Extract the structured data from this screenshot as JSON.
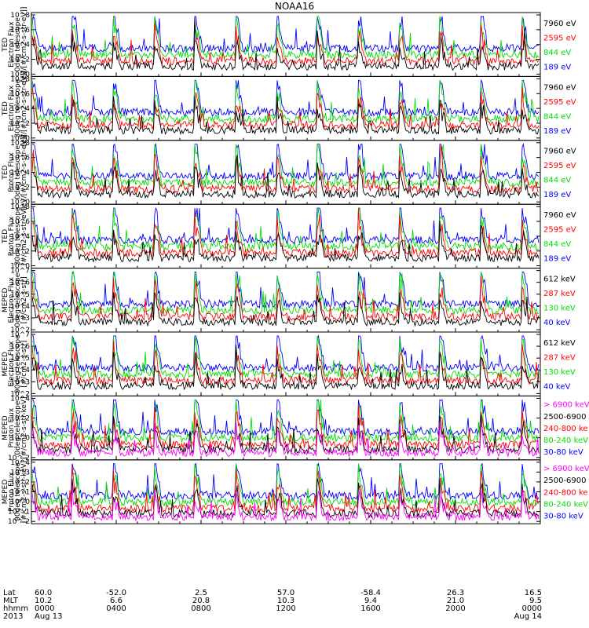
{
  "chart_data": {
    "type": "line",
    "title": "NOAA16",
    "panels": [
      {
        "instrument": "TED",
        "ylabel_lines": [
          "Electron Flux",
          "0deg telescope",
          "[eV/[#/cm2-s-str-eV]]"
        ],
        "yticks": [
          "10^8",
          "10^6",
          "10^4",
          "10^2",
          "10^0"
        ],
        "ylim_exp": [
          0,
          8
        ],
        "legend": [
          {
            "label": "7960 eV",
            "color": "#000000"
          },
          {
            "label": "2595 eV",
            "color": "#ff0000"
          },
          {
            "label": "844 eV",
            "color": "#00dd00"
          },
          {
            "label": "189 eV",
            "color": "#0000ff"
          }
        ]
      },
      {
        "instrument": "TED",
        "ylabel_lines": [
          "Electron Flux",
          "30deg telescope",
          "[eV/[#/cm2-s-str-eV]]"
        ],
        "yticks": [
          "10^8",
          "10^6",
          "10^4",
          "10^2",
          "10^0"
        ],
        "ylim_exp": [
          0,
          8
        ],
        "legend": [
          {
            "label": "7960 eV",
            "color": "#000000"
          },
          {
            "label": "2595 eV",
            "color": "#ff0000"
          },
          {
            "label": "844 eV",
            "color": "#00dd00"
          },
          {
            "label": "189 eV",
            "color": "#0000ff"
          }
        ]
      },
      {
        "instrument": "TED",
        "ylabel_lines": [
          "Proton Flux",
          "0deg telescope",
          "[eV/[#/cm2-s-str-eV]]"
        ],
        "yticks": [
          "10^8",
          "10^6",
          "10^4",
          "10^2",
          "10^0"
        ],
        "ylim_exp": [
          0,
          8
        ],
        "legend": [
          {
            "label": "7960 eV",
            "color": "#000000"
          },
          {
            "label": "2595 eV",
            "color": "#ff0000"
          },
          {
            "label": "844 eV",
            "color": "#00dd00"
          },
          {
            "label": "189 eV",
            "color": "#0000ff"
          }
        ]
      },
      {
        "instrument": "TED",
        "ylabel_lines": [
          "Proton Flux",
          "30deg telescope",
          "[#/cm2-s-str-eV]"
        ],
        "yticks": [
          "10^8",
          "10^6",
          "10^4",
          "10^2",
          "10^0"
        ],
        "ylim_exp": [
          0,
          8
        ],
        "legend": [
          {
            "label": "7960 eV",
            "color": "#000000"
          },
          {
            "label": "2595 eV",
            "color": "#ff0000"
          },
          {
            "label": "844 eV",
            "color": "#00dd00"
          },
          {
            "label": "189 eV",
            "color": "#0000ff"
          }
        ]
      },
      {
        "instrument": "MEPED",
        "ylabel_lines": [
          "Electron Flux",
          "0deg telescope",
          "[#/cm2-s-str]"
        ],
        "yticks": [
          "10^7",
          "10^6",
          "10^5",
          "10^4",
          "10^3",
          "10^2"
        ],
        "ylim_exp": [
          2,
          7
        ],
        "legend": [
          {
            "label": "612 keV",
            "color": "#000000"
          },
          {
            "label": "287 keV",
            "color": "#ff0000"
          },
          {
            "label": "130 keV",
            "color": "#00dd00"
          },
          {
            "label": "40 keV",
            "color": "#0000ff"
          }
        ]
      },
      {
        "instrument": "MEPED",
        "ylabel_lines": [
          "Electron Flux",
          "90deg telescope",
          "[#/cm2-s-str]"
        ],
        "yticks": [
          "10^7",
          "10^6",
          "10^5",
          "10^4",
          "10^3",
          "10^2"
        ],
        "ylim_exp": [
          2,
          7
        ],
        "legend": [
          {
            "label": "612 keV",
            "color": "#000000"
          },
          {
            "label": "287 keV",
            "color": "#ff0000"
          },
          {
            "label": "130 keV",
            "color": "#00dd00"
          },
          {
            "label": "40 keV",
            "color": "#0000ff"
          }
        ]
      },
      {
        "instrument": "MEPED",
        "ylabel_lines": [
          "Proton Flux",
          "0deg telescope",
          "[#/cm2-s-str-keV]"
        ],
        "yticks": [
          "10^4",
          "10^2",
          "10^0",
          "10^-2"
        ],
        "ylim_exp": [
          -2,
          5
        ],
        "legend": [
          {
            "label": "> 6900 keV",
            "color": "#ff00ff"
          },
          {
            "label": "2500-6900",
            "color": "#000000"
          },
          {
            "label": "240-800 ke",
            "color": "#ff0000"
          },
          {
            "label": "80-240 keV",
            "color": "#00dd00"
          },
          {
            "label": "30-80 keV",
            "color": "#0000ff"
          }
        ]
      },
      {
        "instrument": "MEPED",
        "ylabel_lines": [
          "Proton Flux",
          "90deg telescope",
          "[#/cm2-s-str-keV]"
        ],
        "yticks": [
          "10^4",
          "10^3",
          "10^2",
          "10^1",
          "10^0",
          "10^-1",
          "10^-2"
        ],
        "ylim_exp": [
          -2,
          4
        ],
        "legend": [
          {
            "label": "> 6900 keV",
            "color": "#ff00ff"
          },
          {
            "label": "2500-6900",
            "color": "#000000"
          },
          {
            "label": "240-800 ke",
            "color": "#ff0000"
          },
          {
            "label": "80-240 keV",
            "color": "#00dd00"
          },
          {
            "label": "30-80 keV",
            "color": "#0000ff"
          }
        ]
      }
    ],
    "xaxis": {
      "row_labels": [
        "Lat",
        "MLT",
        "hhmm",
        "2013"
      ],
      "ticks": [
        {
          "lat": "60.0",
          "mlt": "10.2",
          "hhmm": "0000",
          "date": "Aug 13"
        },
        {
          "lat": "-52.0",
          "mlt": "6.6",
          "hhmm": "0400",
          "date": ""
        },
        {
          "lat": "2.5",
          "mlt": "20.8",
          "hhmm": "0800",
          "date": ""
        },
        {
          "lat": "57.0",
          "mlt": "10.3",
          "hhmm": "1200",
          "date": ""
        },
        {
          "lat": "-58.4",
          "mlt": "9.4",
          "hhmm": "1600",
          "date": ""
        },
        {
          "lat": "26.3",
          "mlt": "21.0",
          "hhmm": "2000",
          "date": ""
        },
        {
          "lat": "16.5",
          "mlt": "9.5",
          "hhmm": "0000",
          "date": "Aug 14"
        }
      ],
      "range_hours": [
        0,
        24
      ]
    }
  }
}
